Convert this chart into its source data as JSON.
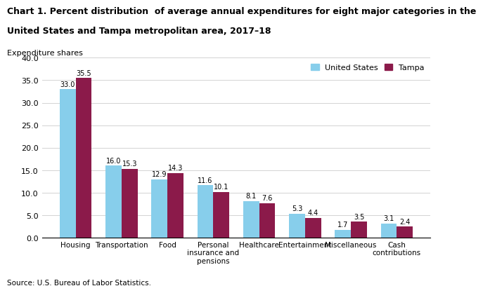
{
  "title_line1": "Chart 1. Percent distribution  of average annual expenditures for eight major categories in the",
  "title_line2": "United States and Tampa metropolitan area, 2017–18",
  "ylabel": "Expenditure shares",
  "source": "Source: U.S. Bureau of Labor Statistics.",
  "categories": [
    "Housing",
    "Transportation",
    "Food",
    "Personal\ninsurance and\npensions",
    "Healthcare",
    "Entertainment",
    "Miscellaneous",
    "Cash\ncontributions"
  ],
  "us_values": [
    33.0,
    16.0,
    12.9,
    11.6,
    8.1,
    5.3,
    1.7,
    3.1
  ],
  "tampa_values": [
    35.5,
    15.3,
    14.3,
    10.1,
    7.6,
    4.4,
    3.5,
    2.4
  ],
  "us_color": "#87CEEB",
  "tampa_color": "#8B1A4A",
  "ylim": [
    0,
    40
  ],
  "yticks": [
    0.0,
    5.0,
    10.0,
    15.0,
    20.0,
    25.0,
    30.0,
    35.0,
    40.0
  ],
  "bar_width": 0.35,
  "legend_labels": [
    "United States",
    "Tampa"
  ],
  "title_fontsize": 9.0,
  "axis_fontsize": 8.0,
  "label_fontsize": 7.5,
  "value_fontsize": 7.0
}
